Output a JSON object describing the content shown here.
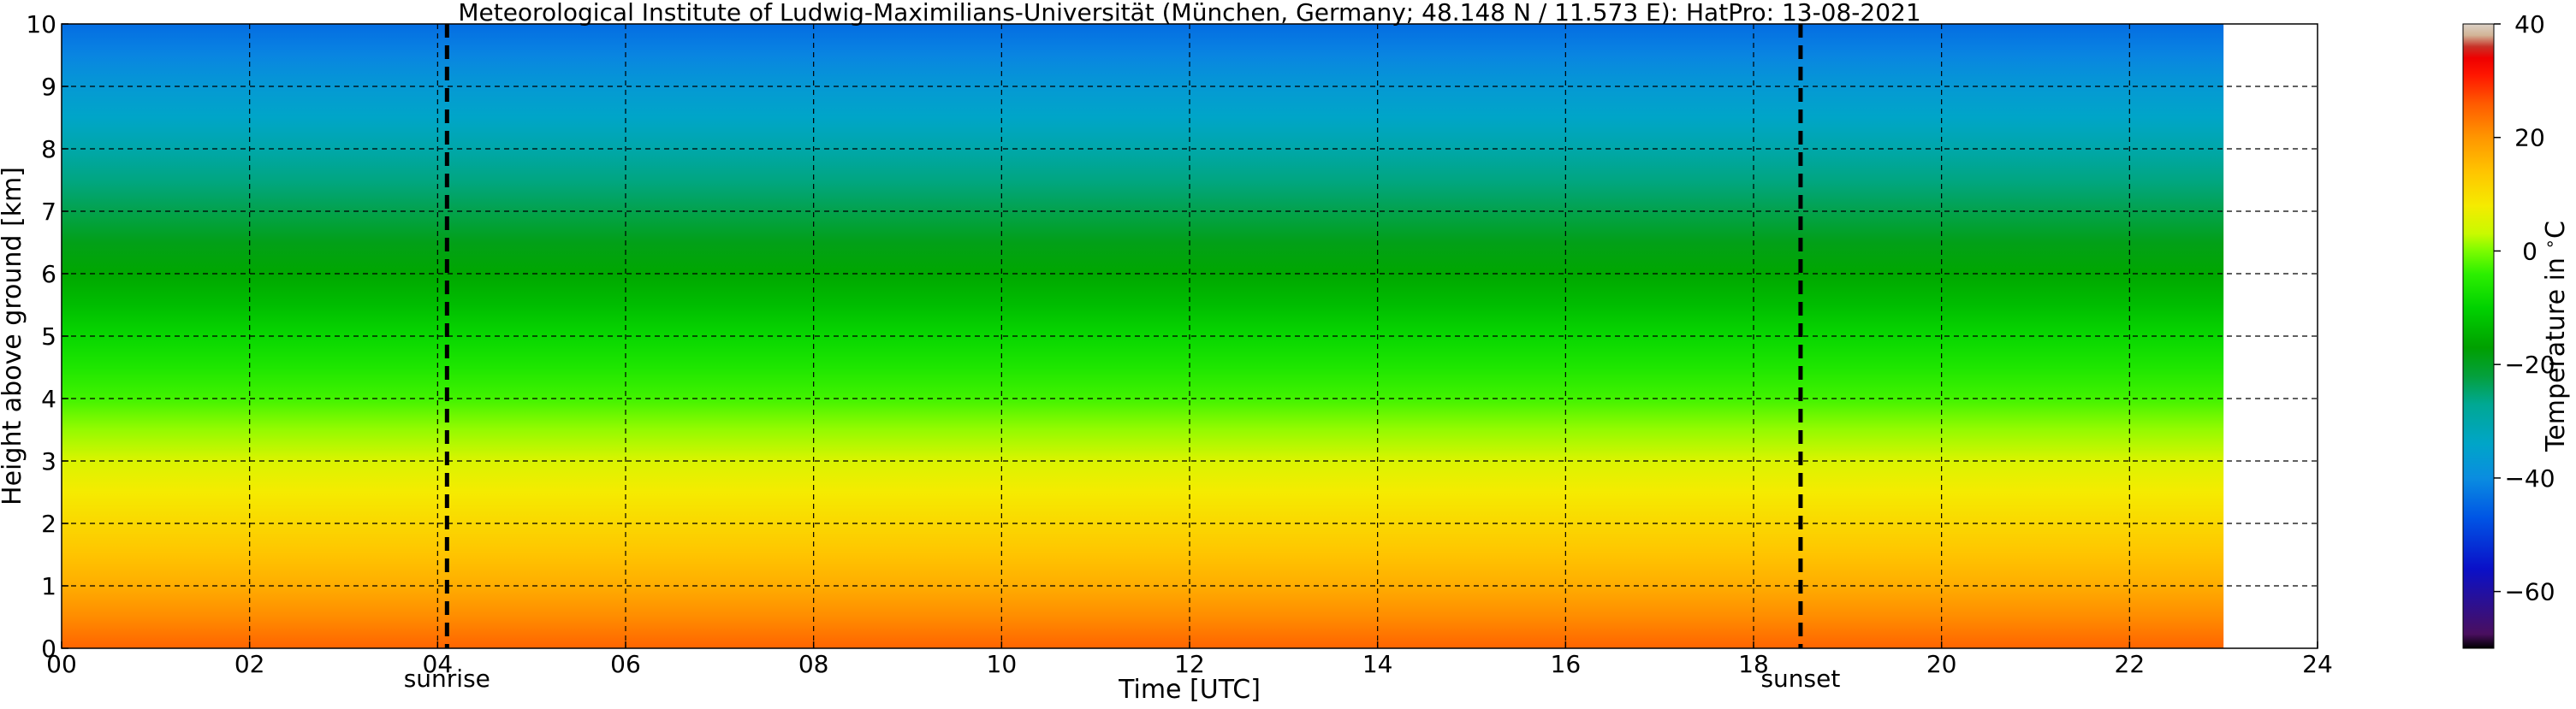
{
  "chart_data": {
    "type": "heatmap",
    "title": "Meteorological Institute of Ludwig-Maximilians-Universität (München, Germany; 48.148 N / 11.573 E):    HatPro: 13-08-2021",
    "xlabel": "Time [UTC]",
    "ylabel": "Height above ground [km]",
    "xlim": [
      0,
      24
    ],
    "ylim": [
      0,
      10
    ],
    "x_ticks": [
      0,
      2,
      4,
      6,
      8,
      10,
      12,
      14,
      16,
      18,
      20,
      22,
      24
    ],
    "x_tick_labels": [
      "00",
      "02",
      "04",
      "06",
      "08",
      "10",
      "12",
      "14",
      "16",
      "18",
      "20",
      "22",
      "24"
    ],
    "y_ticks": [
      0,
      1,
      2,
      3,
      4,
      5,
      6,
      7,
      8,
      9,
      10
    ],
    "y_tick_labels": [
      "0",
      "1",
      "2",
      "3",
      "4",
      "5",
      "6",
      "7",
      "8",
      "9",
      "10"
    ],
    "grid": true,
    "data_time_range": [
      0,
      23
    ],
    "profile": {
      "height_km": [
        0,
        0.5,
        1,
        1.5,
        2,
        2.5,
        3,
        3.5,
        4,
        4.5,
        5,
        5.5,
        6,
        6.5,
        7,
        7.5,
        8,
        8.5,
        9,
        9.5,
        10
      ],
      "temperature_c": [
        25,
        21,
        17,
        14,
        11,
        8,
        5,
        1,
        -3,
        -6,
        -9,
        -13,
        -16,
        -19,
        -23,
        -26,
        -30,
        -34,
        -37,
        -41,
        -44
      ]
    },
    "annotations": [
      {
        "label": "sunrise",
        "time": 4.1
      },
      {
        "label": "sunset",
        "time": 18.5
      }
    ],
    "colorbar": {
      "label": "Temperature in $^\\circ$C",
      "range": [
        -70,
        40
      ],
      "ticks": [
        40,
        20,
        0,
        -20,
        -40,
        -60
      ],
      "tick_labels": [
        "40",
        "20",
        "0",
        "−20",
        "−40",
        "−60"
      ],
      "stops": [
        {
          "value": -70,
          "color": "#000000"
        },
        {
          "value": -67.5,
          "color": "#4a0f5f"
        },
        {
          "value": -56,
          "color": "#0a10c8"
        },
        {
          "value": -47,
          "color": "#0055e5"
        },
        {
          "value": -40,
          "color": "#0a8de0"
        },
        {
          "value": -34,
          "color": "#00a5c8"
        },
        {
          "value": -27,
          "color": "#00a893"
        },
        {
          "value": -22,
          "color": "#04a03c"
        },
        {
          "value": -17,
          "color": "#00a000"
        },
        {
          "value": -10,
          "color": "#00d200"
        },
        {
          "value": -4,
          "color": "#2df000"
        },
        {
          "value": 0,
          "color": "#7cfc00"
        },
        {
          "value": 3,
          "color": "#c8fa00"
        },
        {
          "value": 8,
          "color": "#f5eb00"
        },
        {
          "value": 14,
          "color": "#ffc400"
        },
        {
          "value": 20,
          "color": "#ff9600"
        },
        {
          "value": 26,
          "color": "#ff5a00"
        },
        {
          "value": 31,
          "color": "#ff1600"
        },
        {
          "value": 34,
          "color": "#ef0000"
        },
        {
          "value": 36,
          "color": "#c83228"
        },
        {
          "value": 38,
          "color": "#d2b496"
        },
        {
          "value": 40,
          "color": "#dcd2c8"
        }
      ]
    }
  }
}
